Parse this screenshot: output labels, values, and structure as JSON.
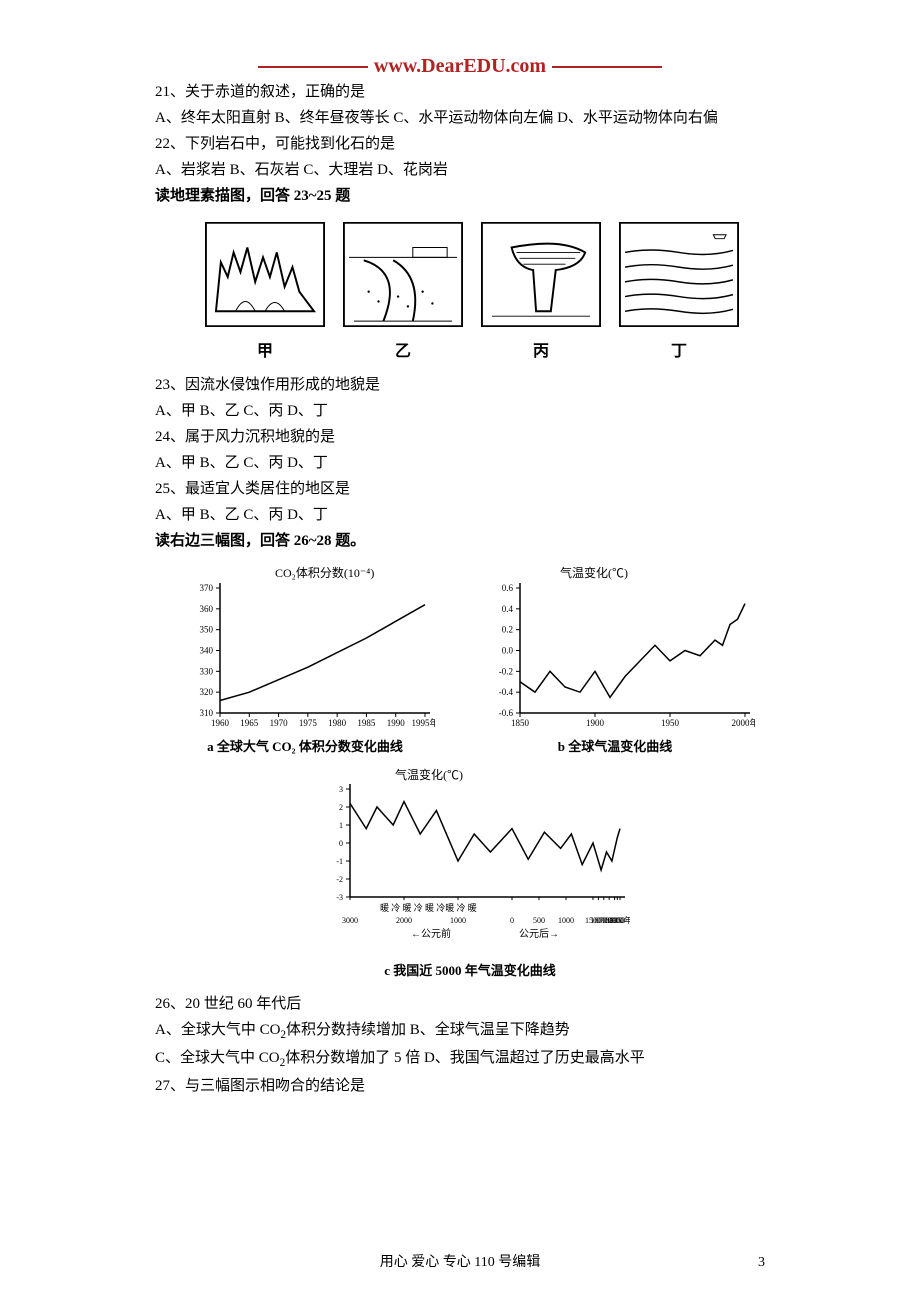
{
  "brand": "www.DearEDU.com",
  "q21": {
    "stem": "21、关于赤道的叙述，正确的是",
    "opts": "A、终年太阳直射 B、终年昼夜等长 C、水平运动物体向左偏 D、水平运动物体向右偏"
  },
  "q22": {
    "stem": "22、下列岩石中，可能找到化石的是",
    "opts": "A、岩浆岩 B、石灰岩 C、大理岩 D、花岗岩"
  },
  "instr1": "读地理素描图，回答 23~25 题",
  "sketches": {
    "labels": [
      "甲",
      "乙",
      "丙",
      "丁"
    ]
  },
  "q23": {
    "stem": "23、因流水侵蚀作用形成的地貌是",
    "opts": "A、甲 B、乙 C、丙 D、丁"
  },
  "q24": {
    "stem": "24、属于风力沉积地貌的是",
    "opts": "A、甲 B、乙 C、丙 D、丁"
  },
  "q25": {
    "stem": "25、最适宜人类居住的地区是",
    "opts": "A、甲 B、乙 C、丙 D、丁"
  },
  "instr2": "读右边三幅图，回答 26~28 题。",
  "chart_a": {
    "type": "line",
    "title_y": "CO₂体积分数(10⁻⁴)",
    "caption": "a  全球大气 CO₂ 体积分数变化曲线",
    "x_ticks": [
      "1960",
      "1965",
      "1970",
      "1975",
      "1980",
      "1985",
      "1990",
      "1995年"
    ],
    "y_ticks": [
      310,
      320,
      330,
      340,
      350,
      360,
      370
    ],
    "ylim": [
      310,
      370
    ],
    "xlim": [
      1960,
      1995
    ],
    "points": [
      [
        1960,
        316
      ],
      [
        1965,
        320
      ],
      [
        1970,
        326
      ],
      [
        1975,
        332
      ],
      [
        1980,
        339
      ],
      [
        1985,
        346
      ],
      [
        1990,
        354
      ],
      [
        1995,
        362
      ]
    ],
    "line_color": "#000000",
    "line_width": 1.5,
    "background_color": "#ffffff",
    "grid_color": "#000000",
    "title_fontsize": 12,
    "tick_fontsize": 9
  },
  "chart_b": {
    "type": "line",
    "title_y": "气温变化(℃)",
    "caption": "b  全球气温变化曲线",
    "x_ticks": [
      "1850",
      "1900",
      "1950",
      "2000年"
    ],
    "y_ticks": [
      -0.6,
      -0.4,
      -0.2,
      0.0,
      0.2,
      0.4,
      0.6
    ],
    "ylim": [
      -0.6,
      0.6
    ],
    "xlim": [
      1850,
      2000
    ],
    "points": [
      [
        1850,
        -0.3
      ],
      [
        1860,
        -0.4
      ],
      [
        1870,
        -0.2
      ],
      [
        1880,
        -0.35
      ],
      [
        1890,
        -0.4
      ],
      [
        1900,
        -0.2
      ],
      [
        1910,
        -0.45
      ],
      [
        1920,
        -0.25
      ],
      [
        1930,
        -0.1
      ],
      [
        1940,
        0.05
      ],
      [
        1950,
        -0.1
      ],
      [
        1960,
        0.0
      ],
      [
        1970,
        -0.05
      ],
      [
        1980,
        0.1
      ],
      [
        1985,
        0.05
      ],
      [
        1990,
        0.25
      ],
      [
        1995,
        0.3
      ],
      [
        2000,
        0.45
      ]
    ],
    "line_color": "#000000",
    "line_width": 1.5,
    "background_color": "#ffffff",
    "title_fontsize": 12,
    "tick_fontsize": 9
  },
  "chart_c": {
    "type": "line",
    "title_y": "气温变化(℃)",
    "caption": "c  我国近 5000 年气温变化曲线",
    "x_ticks": [
      "3000",
      "2000",
      "1000",
      "0",
      "500",
      "1000",
      "1500",
      "1600",
      "1700",
      "1800",
      "1900",
      "1950",
      "2000年"
    ],
    "y_ticks": [
      -3,
      -2,
      -1,
      0,
      1,
      2,
      3
    ],
    "ylim": [
      -3,
      3
    ],
    "xlim": [
      -3000,
      2000
    ],
    "era_label_left": "←公元前",
    "era_label_right": "公元后→",
    "periods": "暖 冷 暖 冷 暖 冷暖   冷   暖",
    "points": [
      [
        -3000,
        2.2
      ],
      [
        -2700,
        0.8
      ],
      [
        -2500,
        2.0
      ],
      [
        -2200,
        1.0
      ],
      [
        -2000,
        2.3
      ],
      [
        -1700,
        0.5
      ],
      [
        -1400,
        1.8
      ],
      [
        -1000,
        -1.0
      ],
      [
        -700,
        0.5
      ],
      [
        -400,
        -0.5
      ],
      [
        0,
        0.8
      ],
      [
        300,
        -0.9
      ],
      [
        600,
        0.6
      ],
      [
        900,
        -0.3
      ],
      [
        1100,
        0.5
      ],
      [
        1300,
        -1.2
      ],
      [
        1500,
        0.0
      ],
      [
        1650,
        -1.5
      ],
      [
        1750,
        -0.5
      ],
      [
        1850,
        -1.0
      ],
      [
        1950,
        0.3
      ],
      [
        2000,
        0.8
      ]
    ],
    "line_color": "#000000",
    "line_width": 1.5,
    "background_color": "#ffffff",
    "title_fontsize": 12,
    "tick_fontsize": 8
  },
  "q26": {
    "stem": "26、20 世纪 60 年代后",
    "optA": "A、全球大气中 CO",
    "optA2": "体积分数持续增加 B、全球气温呈下降趋势",
    "optC": "C、全球大气中 CO",
    "optC2": "体积分数增加了 5 倍 D、我国气温超过了历史最高水平"
  },
  "q27": {
    "stem": "27、与三幅图示相吻合的结论是"
  },
  "footer": "用心 爱心 专心  110 号编辑",
  "page_num": "3",
  "colors": {
    "brand": "#b22222",
    "text": "#000000",
    "bg": "#ffffff"
  }
}
